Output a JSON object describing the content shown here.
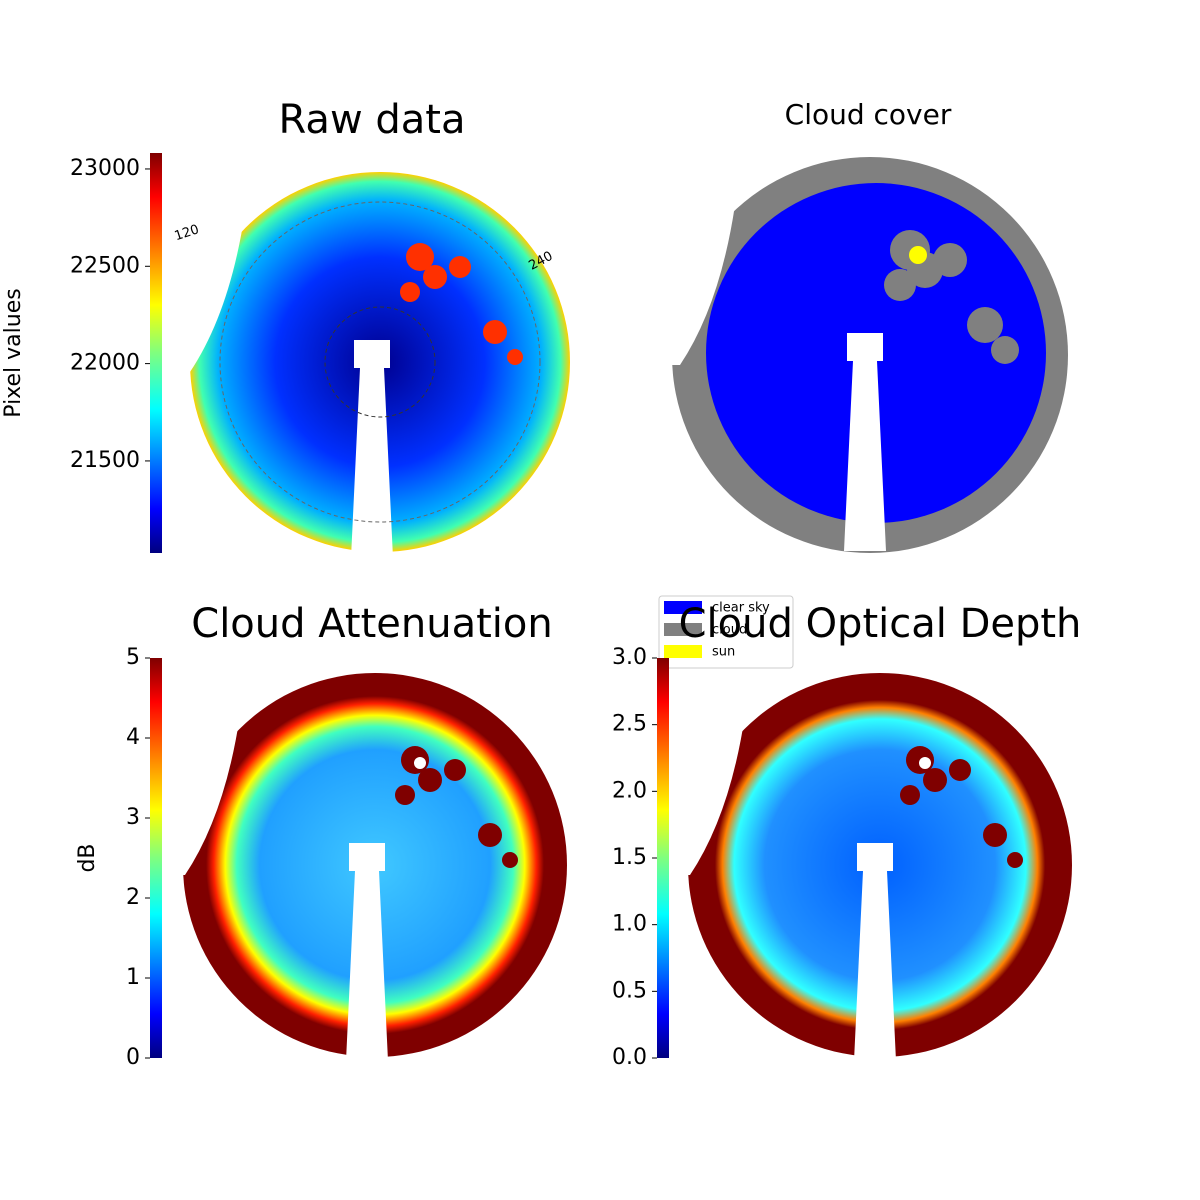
{
  "chart_data": [
    {
      "type": "image",
      "title": "Raw data",
      "colormap": "jet",
      "ylabel": "Pixel values",
      "ylim": [
        21027,
        23082
      ],
      "yticks": [
        21500,
        22000,
        22500,
        23000
      ],
      "annotations": [
        "120",
        "240"
      ]
    },
    {
      "type": "image",
      "title": "Cloud cover",
      "legend": [
        {
          "name": "clear sky",
          "color": "#0000ff"
        },
        {
          "name": "cloud",
          "color": "#808080"
        },
        {
          "name": "sun",
          "color": "#ffff00"
        }
      ]
    },
    {
      "type": "image",
      "title": "Cloud Attenuation",
      "colormap": "jet",
      "ylabel": "dB",
      "ylim": [
        0,
        5
      ],
      "yticks": [
        0,
        1,
        2,
        3,
        4,
        5
      ]
    },
    {
      "type": "image",
      "title": "Cloud Optical Depth",
      "colormap": "jet",
      "ylim": [
        0,
        3
      ],
      "yticks": [
        {
          "value": 0,
          "label": "0.0"
        },
        0.5,
        {
          "value": 1,
          "label": "1.0"
        },
        1.5,
        {
          "value": 2,
          "label": "2.0"
        },
        2.5,
        {
          "value": 3,
          "label": "3.0"
        }
      ]
    }
  ]
}
